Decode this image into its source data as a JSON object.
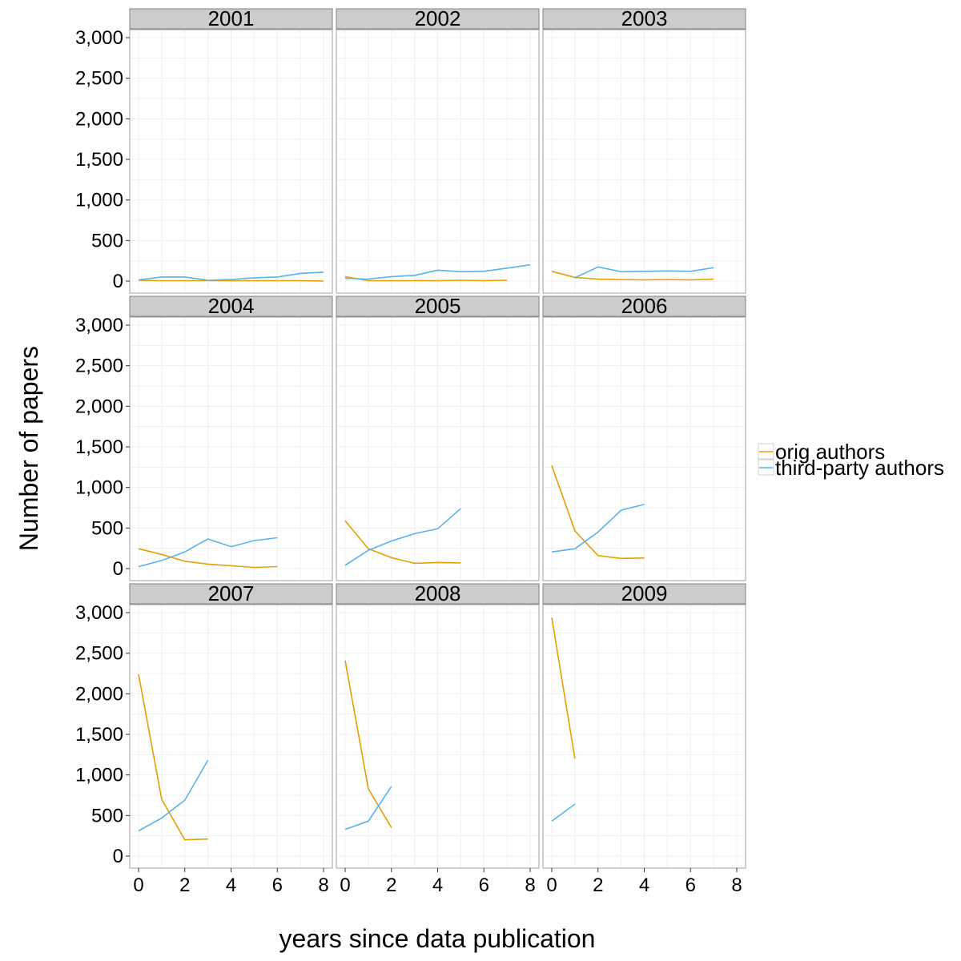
{
  "chart_data": {
    "type": "line",
    "xlabel": "years since data publication",
    "ylabel": "Number of papers",
    "xlim": [
      0,
      8
    ],
    "ylim": [
      0,
      3000
    ],
    "xticks": [
      0,
      2,
      4,
      6,
      8
    ],
    "xtick_labels": [
      "0",
      "2",
      "4",
      "6",
      "8"
    ],
    "yticks": [
      0,
      500,
      1000,
      1500,
      2000,
      2500,
      3000
    ],
    "ytick_labels": [
      "0",
      "500",
      "1,000",
      "1,500",
      "2,000",
      "2,500",
      "3,000"
    ],
    "grid": true,
    "legend_position": "right",
    "series_styles": [
      {
        "name": "orig authors",
        "color": "#E69F00"
      },
      {
        "name": "third-party authors",
        "color": "#56B4E9"
      }
    ],
    "panels": [
      {
        "label": "2001",
        "series": [
          {
            "name": "orig authors",
            "x": [
              0,
              1,
              2,
              3,
              4,
              5,
              6,
              7,
              8
            ],
            "values": [
              10,
              5,
              5,
              5,
              5,
              5,
              5,
              5,
              0
            ]
          },
          {
            "name": "third-party authors",
            "x": [
              0,
              1,
              2,
              3,
              4,
              5,
              6,
              7,
              8
            ],
            "values": [
              15,
              50,
              50,
              10,
              20,
              40,
              50,
              95,
              110
            ]
          }
        ]
      },
      {
        "label": "2002",
        "series": [
          {
            "name": "orig authors",
            "x": [
              0,
              1,
              2,
              3,
              4,
              5,
              6,
              7
            ],
            "values": [
              55,
              5,
              5,
              5,
              5,
              10,
              5,
              10
            ]
          },
          {
            "name": "third-party authors",
            "x": [
              0,
              1,
              2,
              3,
              4,
              5,
              6,
              7,
              8
            ],
            "values": [
              35,
              25,
              55,
              70,
              135,
              115,
              120,
              160,
              200
            ]
          }
        ]
      },
      {
        "label": "2003",
        "series": [
          {
            "name": "orig authors",
            "x": [
              0,
              1,
              2,
              3,
              4,
              5,
              6,
              7
            ],
            "values": [
              120,
              45,
              25,
              20,
              15,
              20,
              15,
              25
            ]
          },
          {
            "name": "third-party authors",
            "x": [
              1,
              2,
              3,
              4,
              5,
              6,
              7
            ],
            "values": [
              40,
              175,
              115,
              120,
              125,
              120,
              165
            ]
          }
        ]
      },
      {
        "label": "2004",
        "series": [
          {
            "name": "orig authors",
            "x": [
              0,
              1,
              2,
              3,
              4,
              5,
              6
            ],
            "values": [
              245,
              175,
              90,
              55,
              35,
              15,
              25
            ]
          },
          {
            "name": "third-party authors",
            "x": [
              0,
              1,
              2,
              3,
              4,
              5,
              6
            ],
            "values": [
              25,
              100,
              205,
              365,
              270,
              345,
              380
            ]
          }
        ]
      },
      {
        "label": "2005",
        "series": [
          {
            "name": "orig authors",
            "x": [
              0,
              1,
              2,
              3,
              4,
              5
            ],
            "values": [
              590,
              245,
              135,
              65,
              75,
              70
            ]
          },
          {
            "name": "third-party authors",
            "x": [
              0,
              1,
              2,
              3,
              4,
              5
            ],
            "values": [
              40,
              225,
              340,
              430,
              490,
              740
            ]
          }
        ]
      },
      {
        "label": "2006",
        "series": [
          {
            "name": "orig authors",
            "x": [
              0,
              1,
              2,
              3,
              4
            ],
            "values": [
              1270,
              465,
              160,
              125,
              130
            ]
          },
          {
            "name": "third-party authors",
            "x": [
              0,
              1,
              2,
              3,
              4
            ],
            "values": [
              205,
              245,
              450,
              720,
              790
            ]
          }
        ]
      },
      {
        "label": "2007",
        "series": [
          {
            "name": "orig authors",
            "x": [
              0,
              1,
              2,
              3
            ],
            "values": [
              2240,
              700,
              200,
              210
            ]
          },
          {
            "name": "third-party authors",
            "x": [
              0,
              1,
              2,
              3
            ],
            "values": [
              310,
              470,
              690,
              1180
            ]
          }
        ]
      },
      {
        "label": "2008",
        "series": [
          {
            "name": "orig authors",
            "x": [
              0,
              1,
              2
            ],
            "values": [
              2410,
              830,
              350
            ]
          },
          {
            "name": "third-party authors",
            "x": [
              0,
              1,
              2
            ],
            "values": [
              330,
              430,
              860
            ]
          }
        ]
      },
      {
        "label": "2009",
        "series": [
          {
            "name": "orig authors",
            "x": [
              0,
              1
            ],
            "values": [
              2940,
              1200
            ]
          },
          {
            "name": "third-party authors",
            "x": [
              0,
              1
            ],
            "values": [
              430,
              640
            ]
          }
        ]
      }
    ]
  }
}
